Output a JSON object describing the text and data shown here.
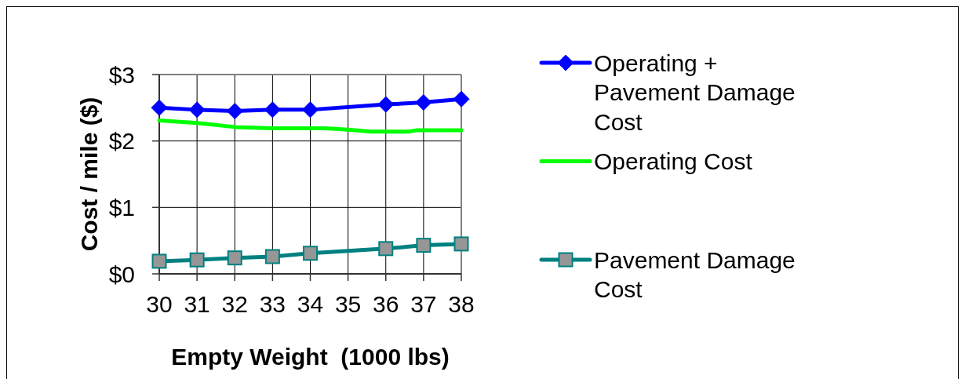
{
  "chart_data": {
    "type": "line",
    "xlabel": "Empty Weight  (1000 lbs)",
    "ylabel": "Cost / mile ($)",
    "xlim": [
      30,
      38
    ],
    "xticks": [
      30,
      31,
      32,
      33,
      34,
      35,
      36,
      37,
      38
    ],
    "ylim": [
      0,
      3
    ],
    "yticks": [
      {
        "value": 0,
        "label": "$0"
      },
      {
        "value": 1,
        "label": "$1"
      },
      {
        "value": 2,
        "label": "$2"
      },
      {
        "value": 3,
        "label": "$3"
      }
    ],
    "grid": true,
    "legend": "right",
    "series": [
      {
        "name": "Operating + Pavement Damage Cost",
        "color": "#0000ff",
        "marker": "diamond",
        "x": [
          30,
          31,
          32,
          33,
          34,
          36,
          37,
          38
        ],
        "values": [
          2.5,
          2.47,
          2.45,
          2.47,
          2.47,
          2.55,
          2.58,
          2.63
        ]
      },
      {
        "name": "Operating Cost",
        "color": "#00ff00",
        "marker": "none",
        "x": [
          30,
          31,
          32,
          33,
          34,
          34.4,
          35,
          35.6,
          36,
          36.6,
          36.8,
          37,
          38
        ],
        "values": [
          2.31,
          2.27,
          2.21,
          2.19,
          2.19,
          2.19,
          2.17,
          2.14,
          2.14,
          2.14,
          2.16,
          2.16,
          2.16
        ]
      },
      {
        "name": "Pavement Damage Cost",
        "color": "#008080",
        "marker": "square",
        "x": [
          30,
          31,
          32,
          33,
          34,
          36,
          37,
          38
        ],
        "values": [
          0.19,
          0.21,
          0.24,
          0.26,
          0.31,
          0.38,
          0.43,
          0.45
        ]
      }
    ]
  }
}
